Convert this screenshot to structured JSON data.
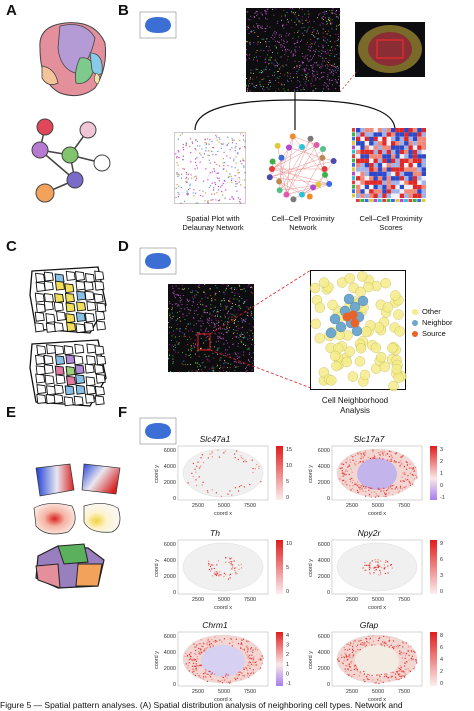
{
  "panels": {
    "a": "A",
    "b": "B",
    "c": "C",
    "d": "D",
    "e": "E",
    "f": "F"
  },
  "panel_b": {
    "plot1": "Spatial Plot with\nDelaunay Network",
    "plot2": "Cell–Cell Proximity\nNetwork",
    "plot3": "Cell–Cell Proximity\nScores"
  },
  "panel_d": {
    "legend": [
      "Other",
      "Neighbor",
      "Source"
    ],
    "legend_colors": [
      "#f5ec8a",
      "#6ea8cc",
      "#e8622c"
    ],
    "analysis": "Cell Neighborhood\nAnalysis"
  },
  "panel_f": {
    "genes": [
      "Slc47a1",
      "Slc17a7",
      "Th",
      "Npy2r",
      "Chrm1",
      "Gfap"
    ],
    "ylabel": "coord y",
    "xlabel": "coord x",
    "yticks": [
      "0",
      "2000",
      "4000",
      "6000"
    ],
    "xticks": [
      "2500",
      "5000",
      "7500"
    ],
    "scales": [
      [
        "15",
        "10",
        "5",
        "0"
      ],
      [
        "3",
        "2",
        "1",
        "0",
        "-1"
      ],
      [
        "10",
        "5",
        "0"
      ],
      [
        "9",
        "6",
        "3",
        "0"
      ],
      [
        "4",
        "3",
        "2",
        "1",
        "0",
        "-1"
      ],
      [
        "8",
        "6",
        "4",
        "2",
        "0"
      ]
    ]
  },
  "caption": "Figure 5 — Spatial pattern analyses. (A) Spatial distribution analysis of neighboring cell types. Network and"
}
